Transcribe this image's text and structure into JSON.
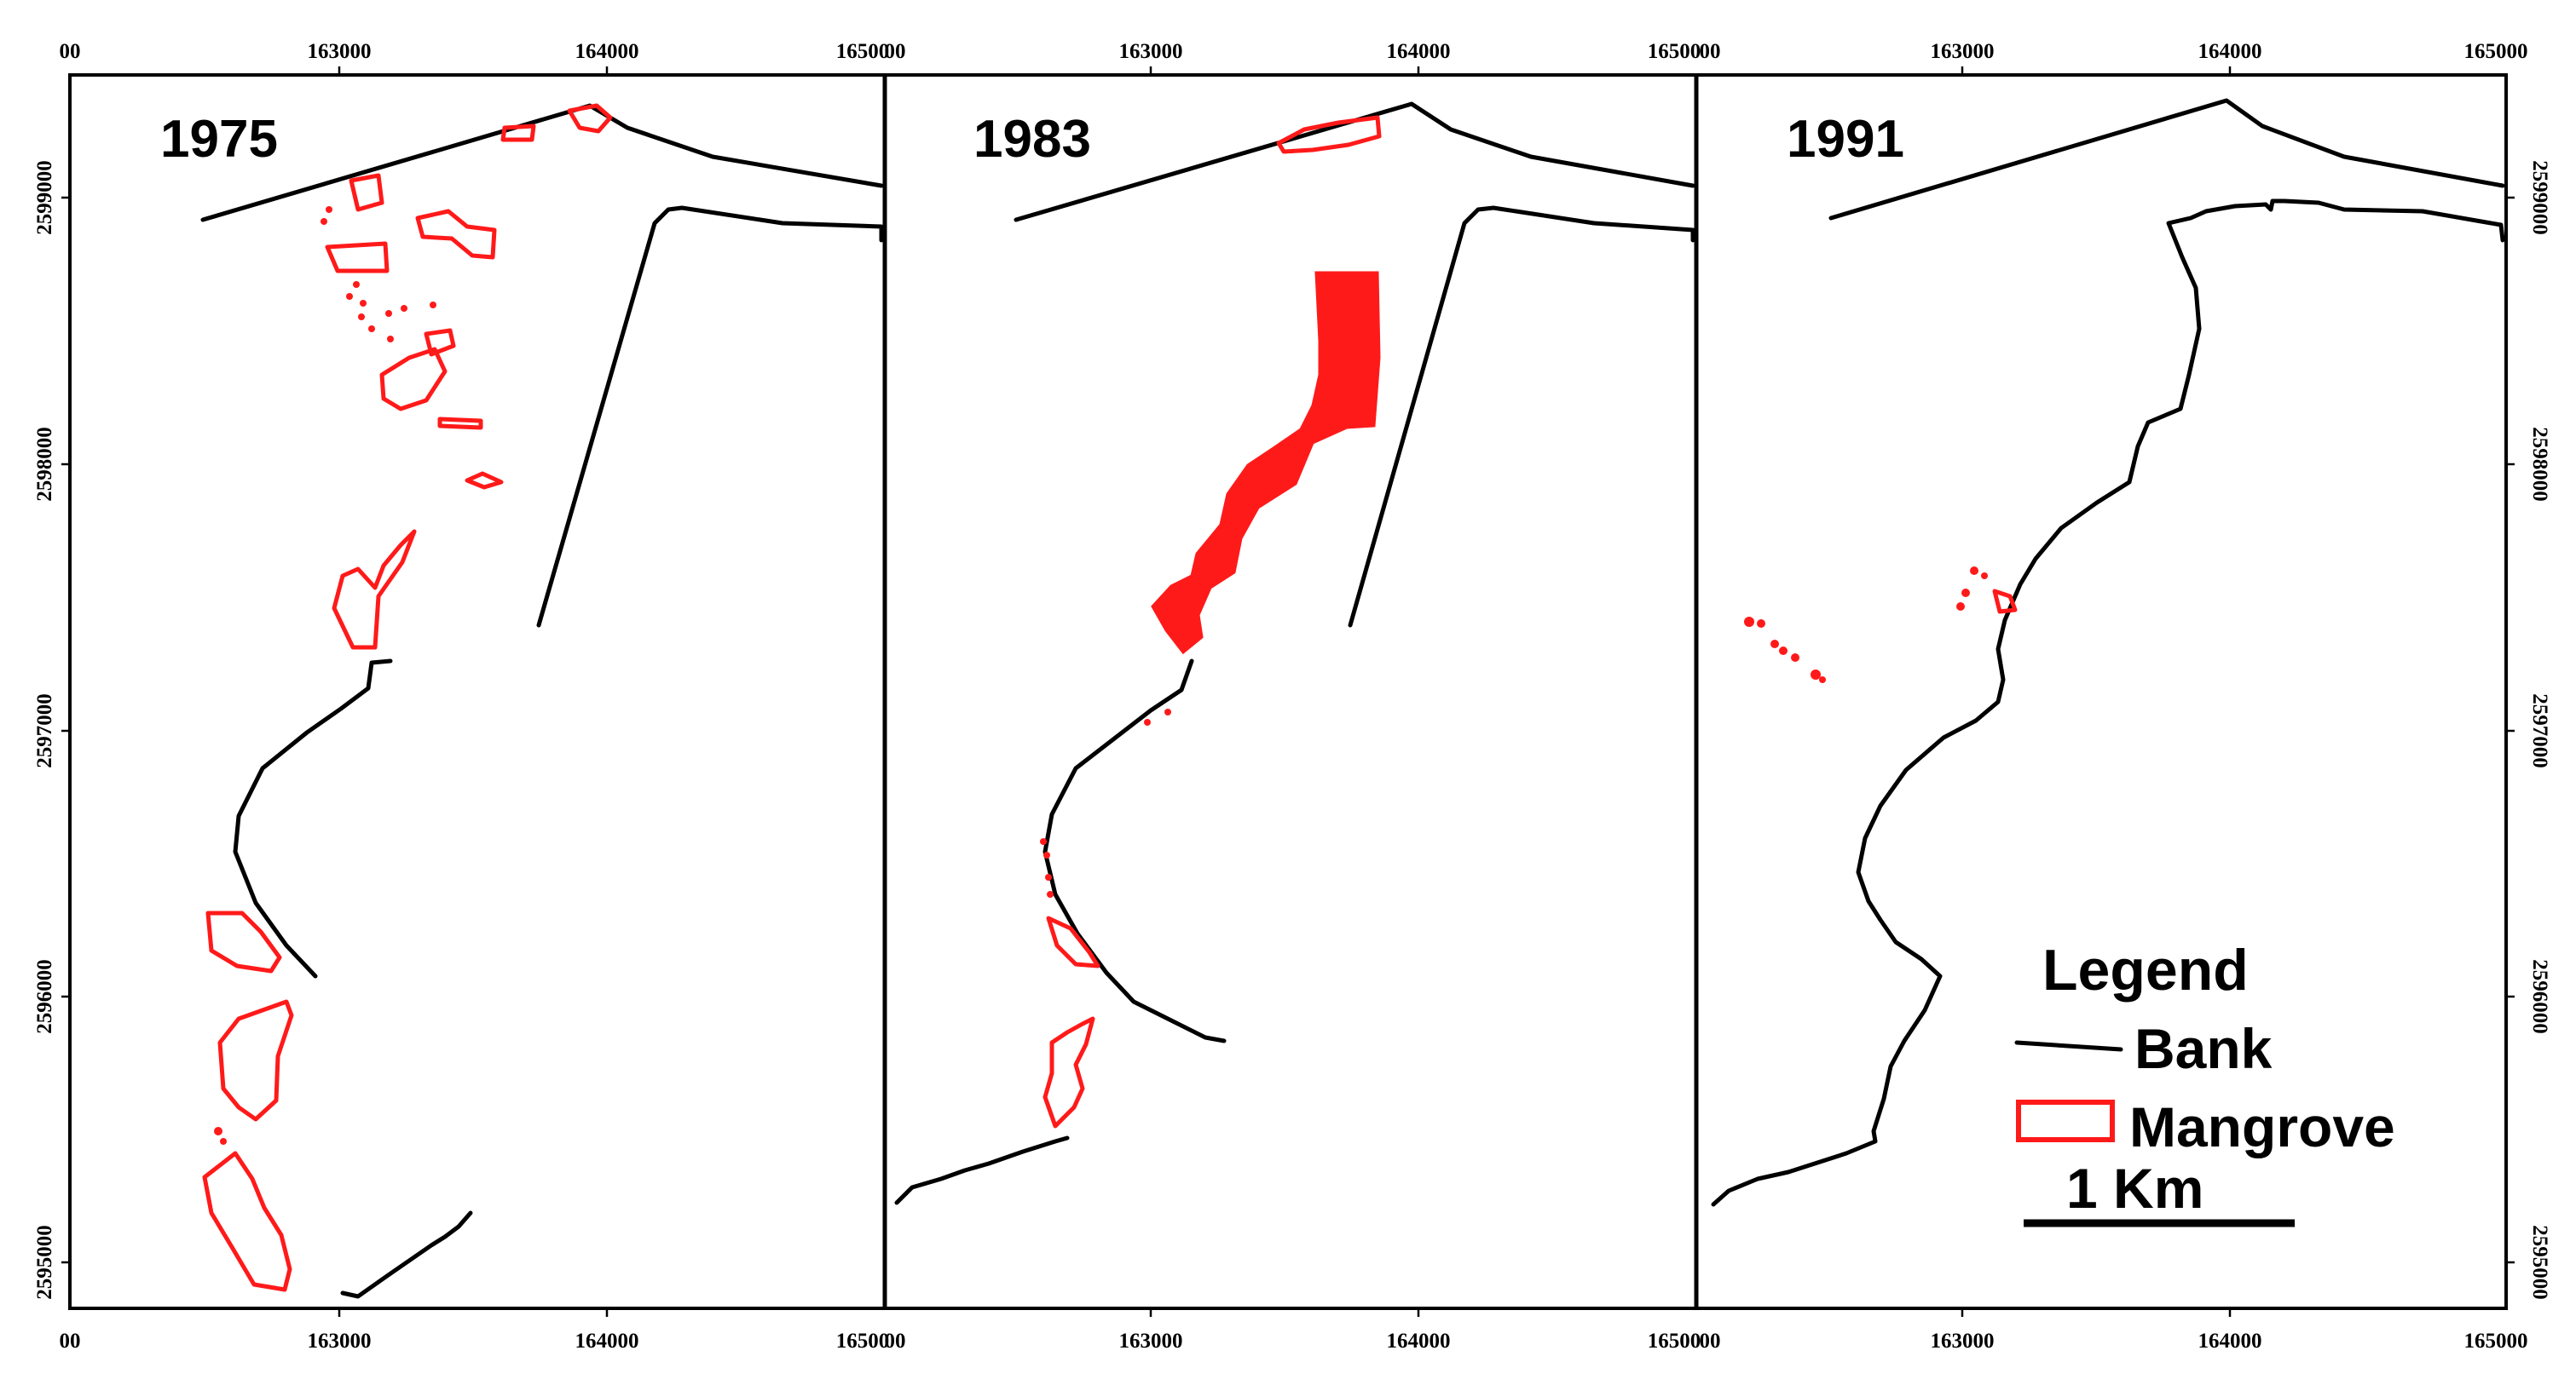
{
  "x_axis": {
    "tick_labels": [
      "163000",
      "164000"
    ],
    "edge_labels": [
      "00",
      "16500",
      "00",
      "16500",
      "00",
      "165000"
    ]
  },
  "y_axis": {
    "tick_labels": [
      "2599000",
      "2598000",
      "2597000",
      "2596000",
      "2595000"
    ]
  },
  "panels": [
    {
      "year": "1975"
    },
    {
      "year": "1983"
    },
    {
      "year": "1991"
    }
  ],
  "legend": {
    "title": "Legend",
    "bank_label": "Bank",
    "mangrove_label": "Mangrove",
    "scale_label": "1 Km"
  },
  "colors": {
    "bank": "#000000",
    "mangrove": "#ff1a1a"
  }
}
